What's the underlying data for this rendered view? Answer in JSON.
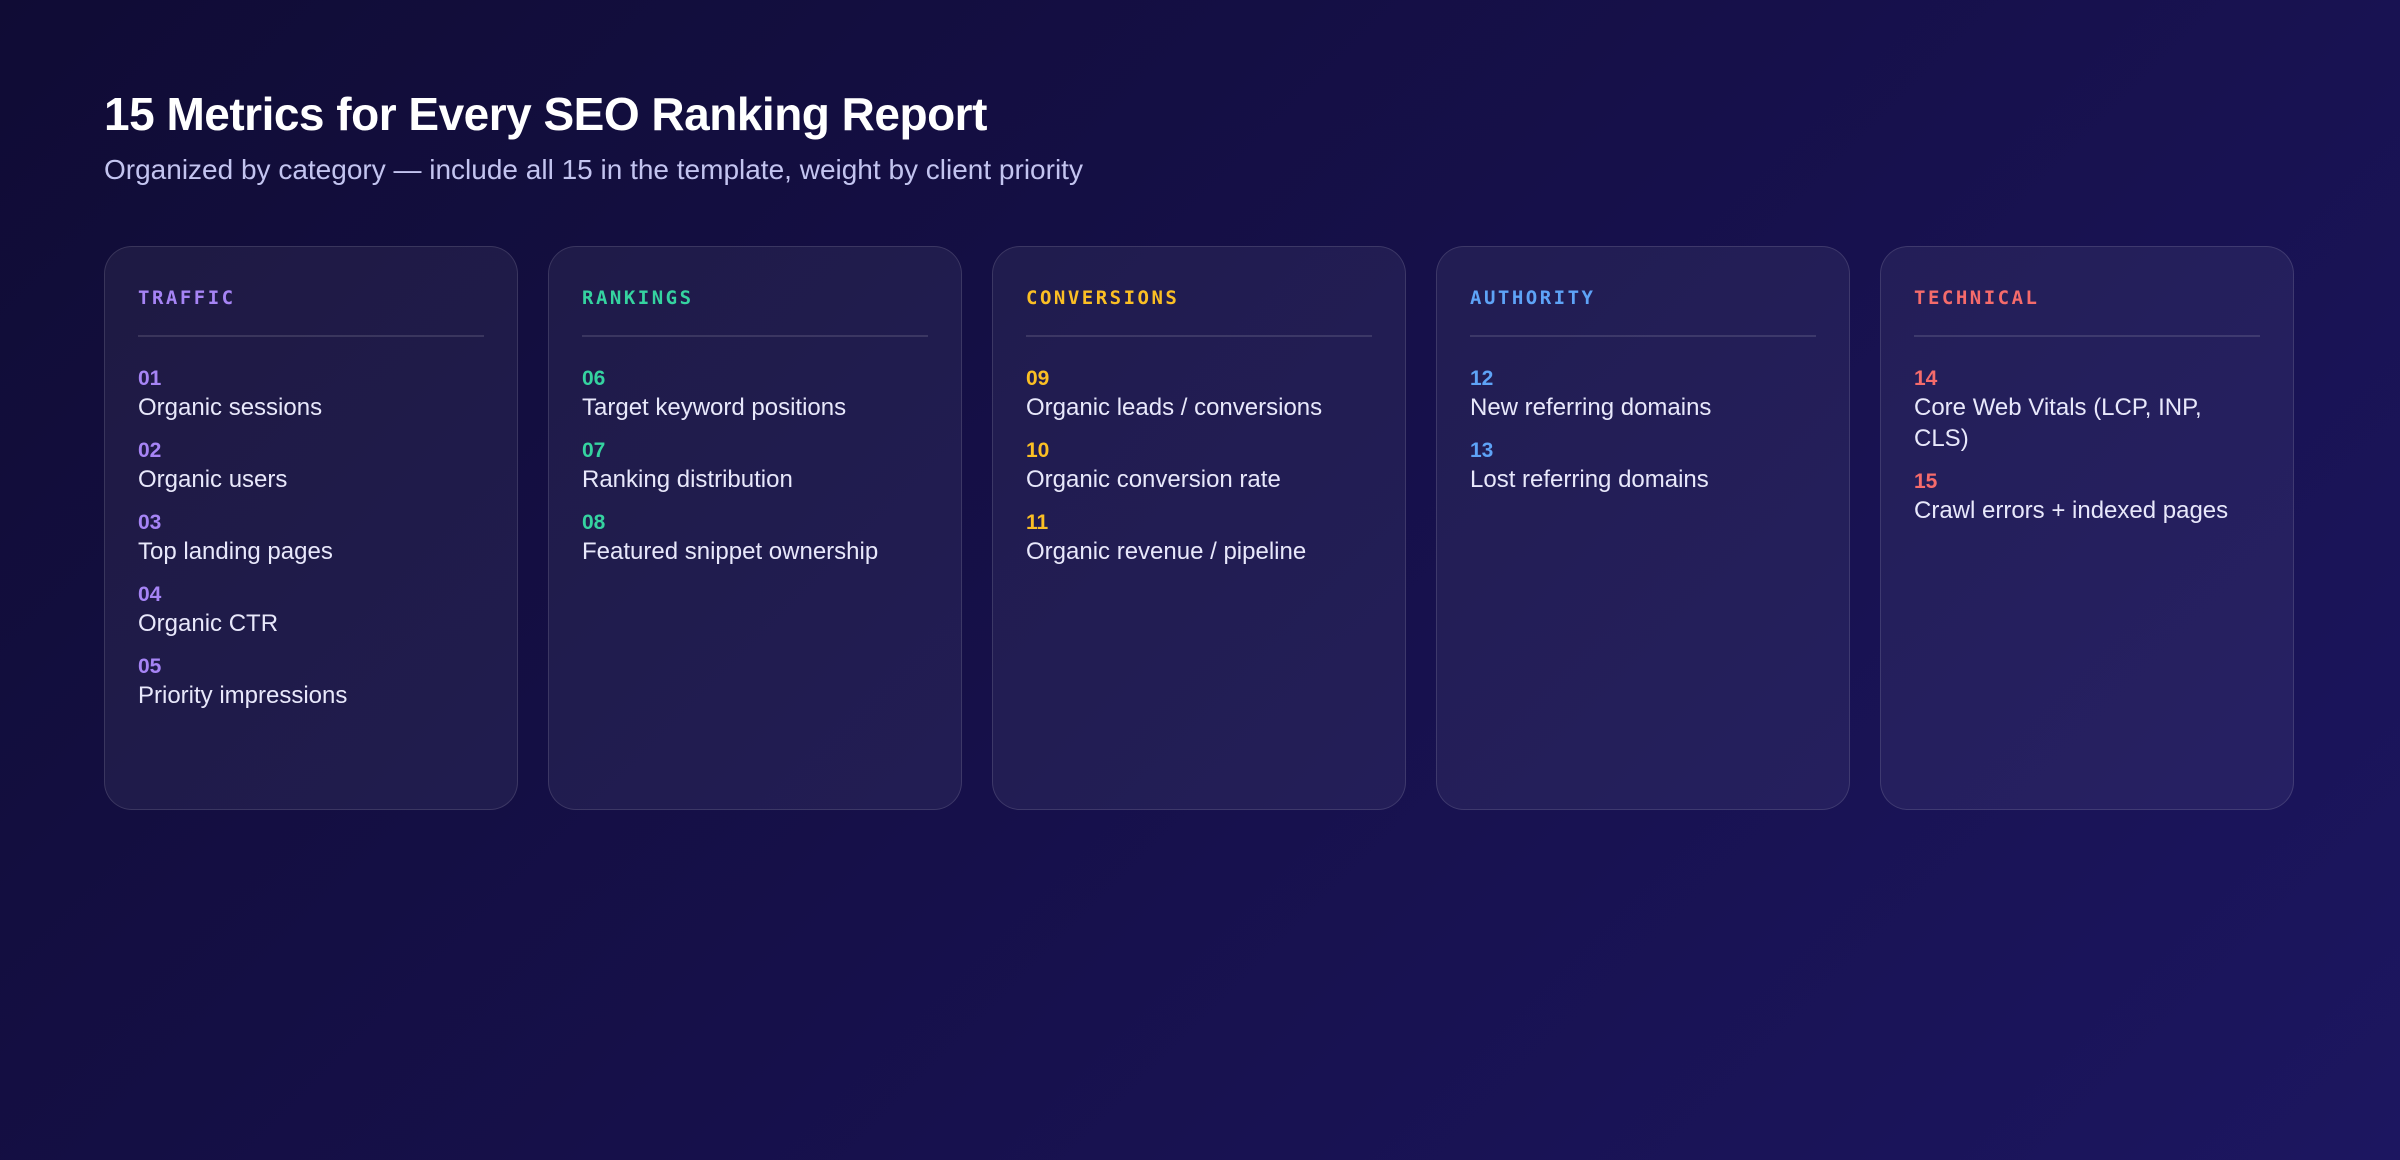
{
  "header": {
    "title": "15 Metrics for Every SEO Ranking Report",
    "subtitle": "Organized by category — include all 15 in the template, weight by client priority"
  },
  "categories": [
    {
      "name": "TRAFFIC",
      "color": "#a684f5",
      "metrics": [
        {
          "num": "01",
          "label": "Organic sessions"
        },
        {
          "num": "02",
          "label": "Organic users"
        },
        {
          "num": "03",
          "label": "Top landing pages"
        },
        {
          "num": "04",
          "label": "Organic CTR"
        },
        {
          "num": "05",
          "label": "Priority impressions"
        }
      ]
    },
    {
      "name": "RANKINGS",
      "color": "#35d3a0",
      "metrics": [
        {
          "num": "06",
          "label": "Target keyword positions"
        },
        {
          "num": "07",
          "label": "Ranking distribution"
        },
        {
          "num": "08",
          "label": "Featured snippet ownership"
        }
      ]
    },
    {
      "name": "CONVERSIONS",
      "color": "#fbbf24",
      "metrics": [
        {
          "num": "09",
          "label": "Organic leads / conversions"
        },
        {
          "num": "10",
          "label": "Organic conversion rate"
        },
        {
          "num": "11",
          "label": "Organic revenue / pipeline"
        }
      ]
    },
    {
      "name": "AUTHORITY",
      "color": "#5ea3f7",
      "metrics": [
        {
          "num": "12",
          "label": "New referring domains"
        },
        {
          "num": "13",
          "label": "Lost referring domains"
        }
      ]
    },
    {
      "name": "TECHNICAL",
      "color": "#f56b6b",
      "metrics": [
        {
          "num": "14",
          "label": "Core Web Vitals (LCP, INP, CLS)"
        },
        {
          "num": "15",
          "label": "Crawl errors + indexed pages"
        }
      ]
    }
  ]
}
